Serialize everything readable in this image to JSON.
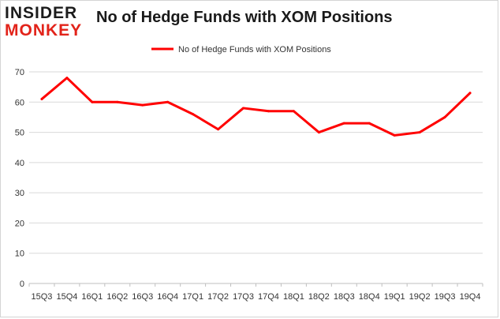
{
  "logo": {
    "line1": "INSIDER",
    "line2": "MONKEY"
  },
  "chart_data": {
    "type": "line",
    "title": "No of Hedge Funds with XOM Positions",
    "xlabel": "",
    "ylabel": "",
    "categories": [
      "15Q3",
      "15Q4",
      "16Q1",
      "16Q2",
      "16Q3",
      "16Q4",
      "17Q1",
      "17Q2",
      "17Q3",
      "17Q4",
      "18Q1",
      "18Q2",
      "18Q3",
      "18Q4",
      "19Q1",
      "19Q2",
      "19Q3",
      "19Q4"
    ],
    "series": [
      {
        "name": "No of Hedge Funds with XOM Positions",
        "values": [
          61,
          68,
          60,
          60,
          59,
          60,
          56,
          51,
          58,
          57,
          57,
          50,
          53,
          53,
          49,
          50,
          55,
          63
        ]
      }
    ],
    "ylim": [
      0,
      70
    ],
    "yticks": [
      0,
      10,
      20,
      30,
      40,
      50,
      60,
      70
    ],
    "grid": true,
    "legend_position": "top-center",
    "line_color": "#ff0000",
    "grid_color": "#d9d9d9"
  }
}
